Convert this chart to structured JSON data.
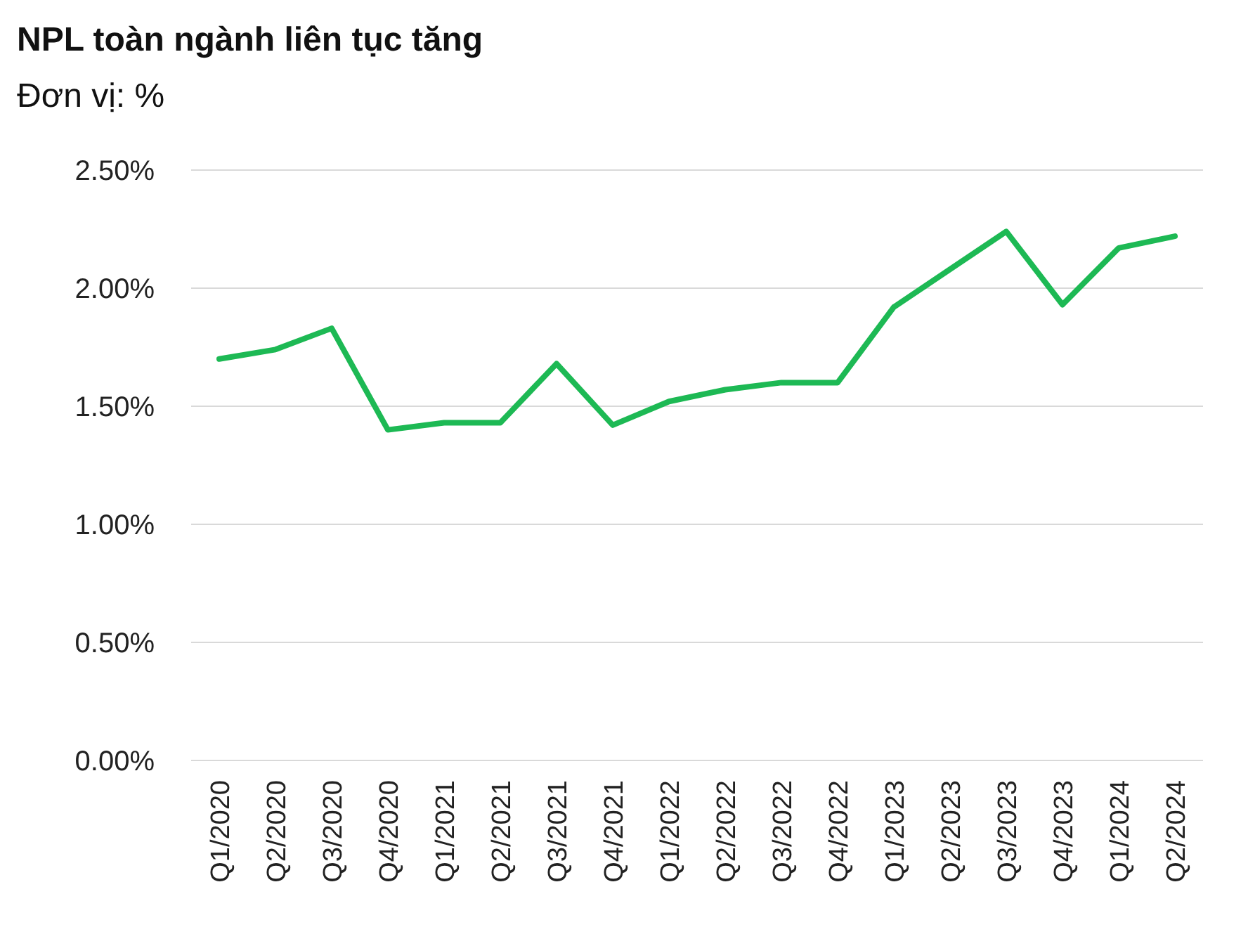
{
  "chart_data": {
    "type": "line",
    "title": "NPL toàn ngành liên tục tăng",
    "subtitle": "Đơn vị: %",
    "categories": [
      "Q1/2020",
      "Q2/2020",
      "Q3/2020",
      "Q4/2020",
      "Q1/2021",
      "Q2/2021",
      "Q3/2021",
      "Q4/2021",
      "Q1/2022",
      "Q2/2022",
      "Q3/2022",
      "Q4/2022",
      "Q1/2023",
      "Q2/2023",
      "Q3/2023",
      "Q4/2023",
      "Q1/2024",
      "Q2/2024"
    ],
    "series": [
      {
        "color": "#1db954",
        "values": [
          1.7,
          1.74,
          1.83,
          1.4,
          1.43,
          1.43,
          1.68,
          1.42,
          1.52,
          1.57,
          1.6,
          1.6,
          1.92,
          2.08,
          2.24,
          1.93,
          2.17,
          2.22
        ]
      }
    ],
    "ylim": [
      0,
      2.5
    ],
    "yticks": [
      {
        "value": 0,
        "label": "0.00%"
      },
      {
        "value": 0.5,
        "label": "0.50%"
      },
      {
        "value": 1,
        "label": "1.00%"
      },
      {
        "value": 1.5,
        "label": "1.50%"
      },
      {
        "value": 2,
        "label": "2.00%"
      },
      {
        "value": 2.5,
        "label": "2.50%"
      }
    ],
    "grid": "y",
    "marker": "none",
    "line_style": "solid"
  }
}
